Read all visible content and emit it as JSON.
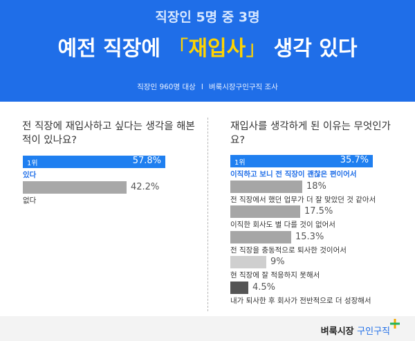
{
  "header": {
    "subtitle": "직장인 5명 중 3명",
    "title_pre": "예전 직장에 ",
    "title_open": "「",
    "title_highlight": "재입사",
    "title_close": "」",
    "title_post": " 생각 있다",
    "source_left": "직장인 960명 대상",
    "source_sep": "I",
    "source_right": "벼룩시장구인구직 조사"
  },
  "colors": {
    "accent": "#1f6ee8",
    "highlight": "#ffd400",
    "top_bar": "#1f7ff0",
    "gray_bar": "#a8a8a8"
  },
  "chart_data": [
    {
      "type": "bar",
      "orientation": "horizontal",
      "title": "전 직장에 재입사하고 싶다는 생각을 해본 적이 있나요?",
      "rank_label": "1위",
      "categories": [
        "있다",
        "없다"
      ],
      "values": [
        57.8,
        42.2
      ],
      "value_labels": [
        "57.8%",
        "42.2%"
      ],
      "xlim": [
        0,
        100
      ]
    },
    {
      "type": "bar",
      "orientation": "horizontal",
      "title": "재입사를 생각하게 된 이유는 무엇인가요?",
      "rank_label": "1위",
      "categories": [
        "이직하고 보니 전 직장이 괜찮은 편이어서",
        "전 직장에서 했던 업무가 더 잘 맞았던 것 같아서",
        "이직한 회사도 별 다를 것이 없어서",
        "전 직장을 충동적으로 퇴사한 것이어서",
        "현 직장에 잘 적응하지 못해서",
        "내가 퇴사한 후 회사가 전반적으로 더 성장해서"
      ],
      "values": [
        35.7,
        18,
        17.5,
        15.3,
        9,
        4.5
      ],
      "value_labels": [
        "35.7%",
        "18%",
        "17.5%",
        "15.3%",
        "9%",
        "4.5%"
      ],
      "xlim": [
        0,
        40
      ]
    }
  ],
  "footer": {
    "brand_main": "벼룩시장",
    "brand_accent": "구인구직"
  }
}
